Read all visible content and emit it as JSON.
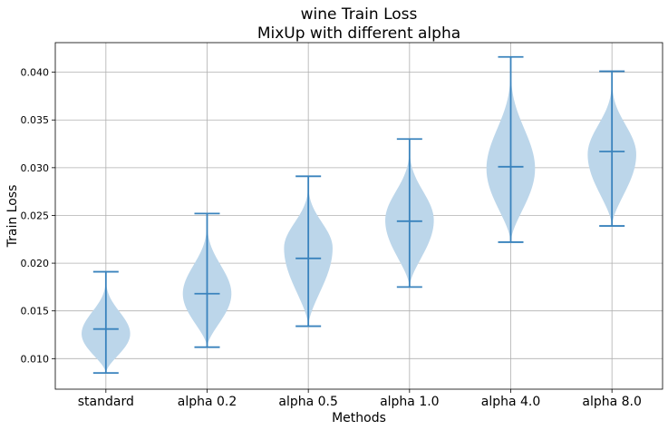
{
  "chart_data": {
    "type": "violin",
    "title": "wine Train Loss",
    "subtitle": "MixUp with different alpha",
    "xlabel": "Methods",
    "ylabel": "Train Loss",
    "ylim": [
      0.0068,
      0.0431
    ],
    "yticks": [
      0.01,
      0.015,
      0.02,
      0.025,
      0.03,
      0.035,
      0.04
    ],
    "ytick_labels": [
      "0.010",
      "0.015",
      "0.020",
      "0.025",
      "0.030",
      "0.035",
      "0.040"
    ],
    "grid": true,
    "colors": {
      "body": "#bcd6ea",
      "line": "#3a83bd"
    },
    "categories": [
      "standard",
      "alpha 0.2",
      "alpha 0.5",
      "alpha 1.0",
      "alpha 4.0",
      "alpha 8.0"
    ],
    "series": [
      {
        "min": 0.0085,
        "max": 0.0191,
        "mean": 0.0131,
        "mode": 0.0126,
        "width": 0.24
      },
      {
        "min": 0.0112,
        "max": 0.0252,
        "mean": 0.0168,
        "mode": 0.0168,
        "width": 0.24
      },
      {
        "min": 0.0134,
        "max": 0.0291,
        "mean": 0.0205,
        "mode": 0.0216,
        "width": 0.24
      },
      {
        "min": 0.0175,
        "max": 0.033,
        "mean": 0.0244,
        "mode": 0.0245,
        "width": 0.24
      },
      {
        "min": 0.0222,
        "max": 0.0416,
        "mean": 0.0301,
        "mode": 0.0299,
        "width": 0.24
      },
      {
        "min": 0.0239,
        "max": 0.0401,
        "mean": 0.0317,
        "mode": 0.0314,
        "width": 0.24
      }
    ]
  }
}
